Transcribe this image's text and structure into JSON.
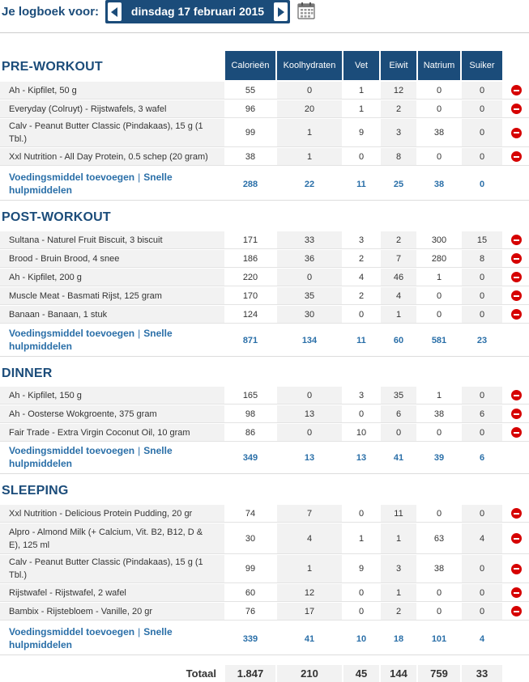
{
  "header": {
    "label": "Je logboek voor:",
    "date": "dinsdag 17 februari 2015",
    "calendar_icon": "calendar-icon"
  },
  "columns": [
    "Calorieën",
    "Koolhydraten",
    "Vet",
    "Eiwit",
    "Natrium",
    "Suiker"
  ],
  "links": {
    "add": "Voedingsmiddel toevoegen",
    "sep": "|",
    "quick": "Snelle hulpmiddelen"
  },
  "sections": [
    {
      "title": "PRE-WORKOUT",
      "rows": [
        {
          "name": "Ah - Kipfilet, 50 g",
          "vals": [
            "55",
            "0",
            "1",
            "12",
            "0",
            "0"
          ]
        },
        {
          "name": "Everyday (Colruyt) - Rijstwafels, 3 wafel",
          "vals": [
            "96",
            "20",
            "1",
            "2",
            "0",
            "0"
          ]
        },
        {
          "name": "Calv - Peanut Butter Classic (Pindakaas), 15 g (1 Tbl.)",
          "vals": [
            "99",
            "1",
            "9",
            "3",
            "38",
            "0"
          ]
        },
        {
          "name": "Xxl Nutrition - All Day Protein, 0.5 schep (20 gram)",
          "vals": [
            "38",
            "1",
            "0",
            "8",
            "0",
            "0"
          ]
        }
      ],
      "totals": [
        "288",
        "22",
        "11",
        "25",
        "38",
        "0"
      ]
    },
    {
      "title": "POST-WORKOUT",
      "rows": [
        {
          "name": "Sultana - Naturel Fruit Biscuit, 3 biscuit",
          "vals": [
            "171",
            "33",
            "3",
            "2",
            "300",
            "15"
          ]
        },
        {
          "name": "Brood - Bruin Brood, 4 snee",
          "vals": [
            "186",
            "36",
            "2",
            "7",
            "280",
            "8"
          ]
        },
        {
          "name": "Ah - Kipfilet, 200 g",
          "vals": [
            "220",
            "0",
            "4",
            "46",
            "1",
            "0"
          ]
        },
        {
          "name": "Muscle Meat - Basmati Rijst, 125 gram",
          "vals": [
            "170",
            "35",
            "2",
            "4",
            "0",
            "0"
          ]
        },
        {
          "name": "Banaan - Banaan, 1 stuk",
          "vals": [
            "124",
            "30",
            "0",
            "1",
            "0",
            "0"
          ]
        }
      ],
      "totals": [
        "871",
        "134",
        "11",
        "60",
        "581",
        "23"
      ]
    },
    {
      "title": "DINNER",
      "rows": [
        {
          "name": "Ah - Kipfilet, 150 g",
          "vals": [
            "165",
            "0",
            "3",
            "35",
            "1",
            "0"
          ]
        },
        {
          "name": "Ah - Oosterse Wokgroente, 375 gram",
          "vals": [
            "98",
            "13",
            "0",
            "6",
            "38",
            "6"
          ]
        },
        {
          "name": "Fair Trade - Extra Virgin Coconut Oil, 10 gram",
          "vals": [
            "86",
            "0",
            "10",
            "0",
            "0",
            "0"
          ]
        }
      ],
      "totals": [
        "349",
        "13",
        "13",
        "41",
        "39",
        "6"
      ]
    },
    {
      "title": "SLEEPING",
      "rows": [
        {
          "name": "Xxl Nutrition - Delicious Protein Pudding, 20 gr",
          "vals": [
            "74",
            "7",
            "0",
            "11",
            "0",
            "0"
          ]
        },
        {
          "name": "Alpro - Almond Milk (+ Calcium, Vit. B2, B12, D & E), 125 ml",
          "vals": [
            "30",
            "4",
            "1",
            "1",
            "63",
            "4"
          ]
        },
        {
          "name": "Calv - Peanut Butter Classic (Pindakaas), 15 g (1 Tbl.)",
          "vals": [
            "99",
            "1",
            "9",
            "3",
            "38",
            "0"
          ]
        },
        {
          "name": "Rijstwafel - Rijstwafel, 2 wafel",
          "vals": [
            "60",
            "12",
            "0",
            "1",
            "0",
            "0"
          ]
        },
        {
          "name": "Bambix - Rijstebloem - Vanille, 20 gr",
          "vals": [
            "76",
            "17",
            "0",
            "2",
            "0",
            "0"
          ]
        }
      ],
      "totals": [
        "339",
        "41",
        "10",
        "18",
        "101",
        "4"
      ]
    }
  ],
  "grand_total": {
    "label": "Totaal",
    "vals": [
      "1.847",
      "210",
      "45",
      "144",
      "759",
      "33"
    ]
  }
}
